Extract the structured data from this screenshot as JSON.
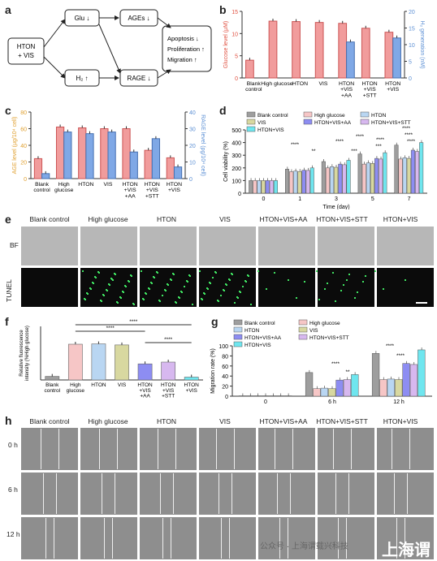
{
  "panel_labels": {
    "a": "a",
    "b": "b",
    "c": "c",
    "d": "d",
    "e": "e",
    "f": "f",
    "g": "g",
    "h": "h"
  },
  "panel_a": {
    "start": "HTON\n+ VIS",
    "glu": "Glu ↓",
    "ages": "AGEs ↓",
    "h2": "H₂ ↑",
    "rage": "RAGE ↓",
    "outcome1": "Apoptosis  ↓",
    "outcome2": "Proliferation ↑",
    "outcome3": "Migration  ↑"
  },
  "groups_short": [
    "Blank\ncontrol",
    "High\nglucose",
    "HTON",
    "VIS",
    "HTON\n+VIS\n+AA",
    "HTON\n+VIS\n+STT",
    "HTON\n+VIS"
  ],
  "groups_full": [
    "Blank control",
    "High glucose",
    "HTON",
    "VIS",
    "HTON+VIS+AA",
    "HTON+VIS+STT",
    "HTON+VIS"
  ],
  "colors": {
    "blank": "#9e9e9e",
    "high": "#f6c6c6",
    "hton": "#b9d6f2",
    "vis": "#d8d8a0",
    "aa": "#8d8df2",
    "stt": "#d7b8ef",
    "htonvis": "#6fe6ef",
    "red": "#f19c9c",
    "blue": "#7fa8e6",
    "orange_axis": "#e0a030",
    "blue_axis": "#5b8fd4"
  },
  "panel_e": {
    "row1": "BF",
    "row2": "TUNEL"
  },
  "panel_h": {
    "row1": "0 h",
    "row2": "6 h",
    "row3": "12 h"
  },
  "chart_data": [
    {
      "id": "b",
      "type": "bar",
      "categories": [
        "Blank\ncontrol",
        "High glucose",
        "HTON",
        "VIS",
        "HTON\n+VIS\n+AA",
        "HTON\n+VIS\n+STT",
        "HTON\n+VIS"
      ],
      "ylabel": "Glucose level (μM)",
      "y2label": "H₂ generation (nM)",
      "ylim": [
        0,
        15
      ],
      "yticks": [
        0,
        5,
        10,
        15
      ],
      "y2lim": [
        0,
        20
      ],
      "y2ticks": [
        0,
        5,
        10,
        15,
        20
      ],
      "series": [
        {
          "values": [
            4,
            12.8,
            12.7,
            12.5,
            12.3,
            11.2,
            10.3
          ],
          "axis": "left"
        },
        {
          "values": [
            0,
            0,
            0,
            0,
            10.8,
            0,
            12
          ],
          "axis": "right"
        }
      ]
    },
    {
      "id": "c",
      "type": "bar",
      "categories": [
        "Blank\ncontrol",
        "High\nglucose",
        "HTON",
        "VIS",
        "HTON\n+VIS\n+AA",
        "HTON\n+VIS\n+STT",
        "HTON\n+VIS"
      ],
      "ylabel": "AGE level (μg/10⁴ cell)",
      "y2label": "RAGE level (pg/10⁴ cell)",
      "ylim": [
        0,
        80
      ],
      "yticks": [
        0,
        20,
        40,
        60,
        80
      ],
      "y2lim": [
        0,
        40
      ],
      "y2ticks": [
        0,
        10,
        20,
        30,
        40
      ],
      "series": [
        {
          "values": [
            24,
            62,
            61,
            60,
            60,
            34,
            25
          ],
          "axis": "left"
        },
        {
          "values": [
            3,
            28,
            27,
            28,
            16,
            24,
            7
          ],
          "axis": "right"
        }
      ]
    },
    {
      "id": "d",
      "type": "bar",
      "categories": [
        "0",
        "1",
        "3",
        "5",
        "7"
      ],
      "xlabel": "Time (day)",
      "ylabel": "Cell viability (%)",
      "ylim": [
        0,
        500
      ],
      "yticks": [
        0,
        100,
        200,
        300,
        400,
        500
      ],
      "legend": [
        "Blank control",
        "High glucose",
        "HTON",
        "VIS",
        "HTON+VIS+AA",
        "HTON+VIS+STT",
        "HTON+VIS"
      ],
      "series": [
        {
          "name": "Blank control",
          "values": [
            100,
            190,
            250,
            310,
            380
          ]
        },
        {
          "name": "High glucose",
          "values": [
            100,
            170,
            200,
            230,
            270
          ]
        },
        {
          "name": "HTON",
          "values": [
            100,
            175,
            210,
            240,
            280
          ]
        },
        {
          "name": "VIS",
          "values": [
            100,
            172,
            205,
            235,
            275
          ]
        },
        {
          "name": "HTON+VIS+AA",
          "values": [
            100,
            182,
            230,
            275,
            340
          ]
        },
        {
          "name": "HTON+VIS+STT",
          "values": [
            100,
            180,
            225,
            270,
            330
          ]
        },
        {
          "name": "HTON+VIS",
          "values": [
            100,
            200,
            260,
            320,
            400
          ]
        }
      ],
      "annotations": [
        "****",
        "**",
        "****",
        "***",
        "****",
        "****",
        "***",
        "****",
        "****",
        "****"
      ]
    },
    {
      "id": "f",
      "type": "bar",
      "categories": [
        "Blank\ncontrol",
        "High\nglucose",
        "HTON",
        "VIS",
        "HTON\n+VIS\n+AA",
        "HTON\n+VIS\n+STT",
        "HTON\n+VIS"
      ],
      "ylabel": "Relative fluorescence\nintensity (%High glucose)",
      "ylim": [
        0,
        150
      ],
      "values": [
        10,
        100,
        101,
        98,
        45,
        50,
        8
      ],
      "annotations": [
        "****",
        "****",
        "****"
      ]
    },
    {
      "id": "g",
      "type": "bar",
      "categories": [
        "0",
        "6 h",
        "12 h"
      ],
      "ylabel": "Migration rate (%)",
      "ylim": [
        0,
        100
      ],
      "yticks": [
        0,
        20,
        40,
        60,
        80,
        100
      ],
      "legend": [
        "Blank control",
        "High glucose",
        "HTON",
        "VIS",
        "HTON+VIS+AA",
        "HTON+VIS+STT",
        "HTON+VIS"
      ],
      "series": [
        {
          "name": "Blank control",
          "values": [
            0,
            47,
            85
          ]
        },
        {
          "name": "High glucose",
          "values": [
            0,
            15,
            33
          ]
        },
        {
          "name": "HTON",
          "values": [
            0,
            16,
            34
          ]
        },
        {
          "name": "VIS",
          "values": [
            0,
            15,
            33
          ]
        },
        {
          "name": "HTON+VIS+AA",
          "values": [
            0,
            32,
            65
          ]
        },
        {
          "name": "HTON+VIS+STT",
          "values": [
            0,
            33,
            63
          ]
        },
        {
          "name": "HTON+VIS",
          "values": [
            0,
            43,
            92
          ]
        }
      ],
      "annotations": [
        "****",
        "**",
        "****",
        "****"
      ]
    }
  ],
  "watermark": {
    "small": "公众号 · 上海谓载兴科技",
    "big": "上海谓"
  }
}
